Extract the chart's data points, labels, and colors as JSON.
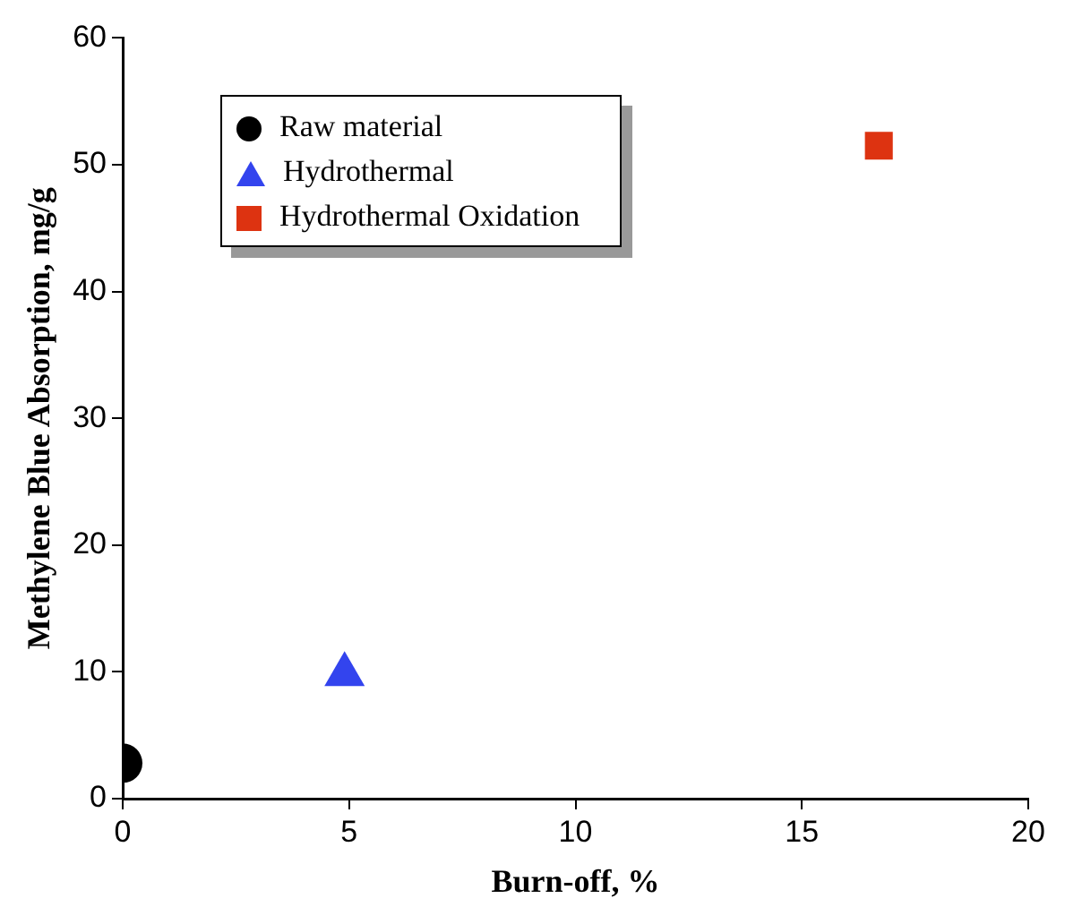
{
  "chart_data": {
    "type": "scatter",
    "xlabel": "Burn-off, %",
    "ylabel": "Methylene Blue Absorption, mg/g",
    "xlim": [
      0,
      20
    ],
    "xticks": [
      0,
      5,
      10,
      15,
      20
    ],
    "ylim": [
      0,
      60
    ],
    "yticks": [
      0,
      10,
      20,
      30,
      40,
      50,
      60
    ],
    "grid": false,
    "legend": "top left",
    "series": [
      {
        "name": "Raw material",
        "color": "#000000",
        "marker": "circle",
        "x": [
          0
        ],
        "values": [
          2.8
        ]
      },
      {
        "name": "Hydrothermal",
        "color": "#3344ee",
        "marker": "triangle",
        "x": [
          4.9
        ],
        "values": [
          9.8
        ]
      },
      {
        "name": "Hydrothermal Oxidation",
        "color": "#dd3311",
        "marker": "square",
        "x": [
          16.7
        ],
        "values": [
          51.5
        ]
      }
    ]
  }
}
